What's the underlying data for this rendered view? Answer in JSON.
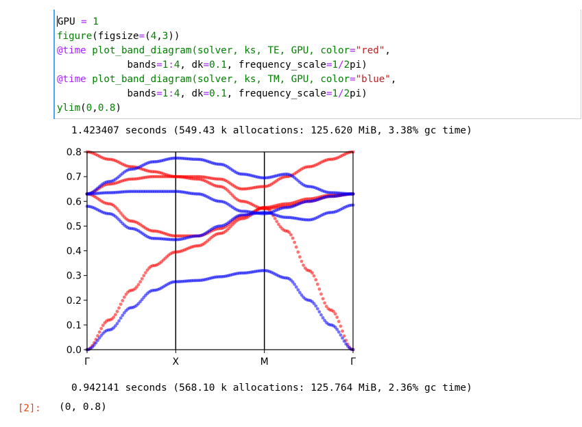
{
  "cell_input": {
    "lines": [
      [
        {
          "t": "GPU",
          "c": "plain"
        },
        {
          "t": " = ",
          "c": "o"
        },
        {
          "t": "1",
          "c": "n"
        }
      ],
      [
        {
          "t": "figure",
          "c": "k"
        },
        {
          "t": "(",
          "c": "plain"
        },
        {
          "t": "figsize",
          "c": "plain"
        },
        {
          "t": "=",
          "c": "o"
        },
        {
          "t": "(",
          "c": "plain"
        },
        {
          "t": "4",
          "c": "n"
        },
        {
          "t": ",",
          "c": "plain"
        },
        {
          "t": "3",
          "c": "n"
        },
        {
          "t": "))",
          "c": "plain"
        }
      ],
      [
        {
          "t": "@time",
          "c": "o"
        },
        {
          "t": " plot_band_diagram(solver, ks, TE, GPU, color",
          "c": "k"
        },
        {
          "t": "=",
          "c": "o"
        },
        {
          "t": "\"red\"",
          "c": "s"
        },
        {
          "t": ",",
          "c": "plain"
        }
      ],
      [
        {
          "t": "            bands",
          "c": "plain"
        },
        {
          "t": "=",
          "c": "o"
        },
        {
          "t": "1",
          "c": "n"
        },
        {
          "t": ":",
          "c": "o"
        },
        {
          "t": "4",
          "c": "n"
        },
        {
          "t": ", dk",
          "c": "plain"
        },
        {
          "t": "=",
          "c": "o"
        },
        {
          "t": "0.1",
          "c": "n"
        },
        {
          "t": ", frequency_scale",
          "c": "plain"
        },
        {
          "t": "=",
          "c": "o"
        },
        {
          "t": "1",
          "c": "n"
        },
        {
          "t": "/",
          "c": "o"
        },
        {
          "t": "2",
          "c": "n"
        },
        {
          "t": "pi)",
          "c": "plain"
        }
      ],
      [
        {
          "t": "@time",
          "c": "o"
        },
        {
          "t": " plot_band_diagram(solver, ks, TM, GPU, color",
          "c": "k"
        },
        {
          "t": "=",
          "c": "o"
        },
        {
          "t": "\"blue\"",
          "c": "s"
        },
        {
          "t": ",",
          "c": "plain"
        }
      ],
      [
        {
          "t": "            bands",
          "c": "plain"
        },
        {
          "t": "=",
          "c": "o"
        },
        {
          "t": "1",
          "c": "n"
        },
        {
          "t": ":",
          "c": "o"
        },
        {
          "t": "4",
          "c": "n"
        },
        {
          "t": ", dk",
          "c": "plain"
        },
        {
          "t": "=",
          "c": "o"
        },
        {
          "t": "0.1",
          "c": "n"
        },
        {
          "t": ", frequency_scale",
          "c": "plain"
        },
        {
          "t": "=",
          "c": "o"
        },
        {
          "t": "1",
          "c": "n"
        },
        {
          "t": "/",
          "c": "o"
        },
        {
          "t": "2",
          "c": "n"
        },
        {
          "t": "pi)",
          "c": "plain"
        }
      ],
      [
        {
          "t": "ylim",
          "c": "k"
        },
        {
          "t": "(",
          "c": "plain"
        },
        {
          "t": "0",
          "c": "n"
        },
        {
          "t": ",",
          "c": "plain"
        },
        {
          "t": "0.8",
          "c": "n"
        },
        {
          "t": ")",
          "c": "plain"
        }
      ]
    ]
  },
  "output": {
    "stdout_1": "1.423407 seconds (549.43 k allocations: 125.620 MiB, 3.38% gc time)",
    "stdout_2": "0.942141 seconds (568.10 k allocations: 125.764 MiB, 2.36% gc time)",
    "prompt": "[2]:",
    "result": "(0, 0.8)"
  },
  "chart_data": {
    "type": "scatter",
    "title": "",
    "xlabel": "",
    "ylabel": "",
    "ylim": [
      0,
      0.8
    ],
    "xlim": [
      0,
      3
    ],
    "xticks": [
      {
        "v": 0,
        "label": "Γ"
      },
      {
        "v": 1,
        "label": "X"
      },
      {
        "v": 2,
        "label": "M"
      },
      {
        "v": 3,
        "label": "Γ"
      }
    ],
    "yticks": [
      "0.0",
      "0.1",
      "0.2",
      "0.3",
      "0.4",
      "0.5",
      "0.6",
      "0.7",
      "0.8"
    ],
    "vlines": [
      1,
      2
    ],
    "colors": {
      "TE": "#ff0000",
      "TM": "#0000ff"
    },
    "series": [
      {
        "color": "#ff0000",
        "points": [
          [
            0,
            0
          ],
          [
            0.25,
            0.12
          ],
          [
            0.5,
            0.24
          ],
          [
            0.75,
            0.34
          ],
          [
            1,
            0.395
          ],
          [
            1.25,
            0.42
          ],
          [
            1.5,
            0.47
          ],
          [
            1.75,
            0.53
          ],
          [
            2,
            0.575
          ],
          [
            2.25,
            0.48
          ],
          [
            2.5,
            0.32
          ],
          [
            2.75,
            0.16
          ],
          [
            3,
            0
          ]
        ]
      },
      {
        "color": "#ff0000",
        "points": [
          [
            0,
            0.63
          ],
          [
            0.25,
            0.59
          ],
          [
            0.5,
            0.52
          ],
          [
            0.75,
            0.48
          ],
          [
            1,
            0.46
          ],
          [
            1.25,
            0.46
          ],
          [
            1.5,
            0.49
          ],
          [
            1.75,
            0.54
          ],
          [
            2,
            0.575
          ],
          [
            2.25,
            0.59
          ],
          [
            2.5,
            0.61
          ],
          [
            2.75,
            0.625
          ],
          [
            3,
            0.63
          ]
        ]
      },
      {
        "color": "#ff0000",
        "points": [
          [
            0,
            0.63
          ],
          [
            0.25,
            0.67
          ],
          [
            0.5,
            0.69
          ],
          [
            0.75,
            0.7
          ],
          [
            1,
            0.7
          ],
          [
            1.25,
            0.69
          ],
          [
            1.5,
            0.66
          ],
          [
            1.75,
            0.6
          ],
          [
            2,
            0.57
          ],
          [
            2.25,
            0.58
          ],
          [
            2.5,
            0.6
          ],
          [
            2.75,
            0.62
          ],
          [
            3,
            0.63
          ]
        ]
      },
      {
        "color": "#ff0000",
        "points": [
          [
            0,
            0.8
          ],
          [
            0.25,
            0.77
          ],
          [
            0.5,
            0.74
          ],
          [
            0.75,
            0.72
          ],
          [
            1,
            0.7
          ],
          [
            1.25,
            0.7
          ],
          [
            1.5,
            0.69
          ],
          [
            1.75,
            0.65
          ],
          [
            2,
            0.66
          ],
          [
            2.25,
            0.7
          ],
          [
            2.5,
            0.74
          ],
          [
            2.75,
            0.77
          ],
          [
            3,
            0.8
          ]
        ]
      },
      {
        "color": "#0000ff",
        "points": [
          [
            0,
            0
          ],
          [
            0.25,
            0.08
          ],
          [
            0.5,
            0.17
          ],
          [
            0.75,
            0.24
          ],
          [
            1,
            0.275
          ],
          [
            1.25,
            0.28
          ],
          [
            1.5,
            0.295
          ],
          [
            1.75,
            0.31
          ],
          [
            2,
            0.32
          ],
          [
            2.25,
            0.29
          ],
          [
            2.5,
            0.2
          ],
          [
            2.75,
            0.1
          ],
          [
            3,
            0
          ]
        ]
      },
      {
        "color": "#0000ff",
        "points": [
          [
            0,
            0.58
          ],
          [
            0.25,
            0.55
          ],
          [
            0.5,
            0.49
          ],
          [
            0.75,
            0.45
          ],
          [
            1,
            0.445
          ],
          [
            1.25,
            0.46
          ],
          [
            1.5,
            0.5
          ],
          [
            1.75,
            0.545
          ],
          [
            2,
            0.555
          ],
          [
            2.25,
            0.535
          ],
          [
            2.5,
            0.525
          ],
          [
            2.75,
            0.555
          ],
          [
            3,
            0.585
          ]
        ]
      },
      {
        "color": "#0000ff",
        "points": [
          [
            0,
            0.63
          ],
          [
            0.25,
            0.635
          ],
          [
            0.5,
            0.64
          ],
          [
            0.75,
            0.64
          ],
          [
            1,
            0.64
          ],
          [
            1.25,
            0.63
          ],
          [
            1.5,
            0.6
          ],
          [
            1.75,
            0.56
          ],
          [
            2,
            0.55
          ],
          [
            2.25,
            0.575
          ],
          [
            2.5,
            0.6
          ],
          [
            2.75,
            0.62
          ],
          [
            3,
            0.63
          ]
        ]
      },
      {
        "color": "#0000ff",
        "points": [
          [
            0,
            0.63
          ],
          [
            0.25,
            0.68
          ],
          [
            0.5,
            0.73
          ],
          [
            0.75,
            0.76
          ],
          [
            1,
            0.775
          ],
          [
            1.25,
            0.77
          ],
          [
            1.5,
            0.75
          ],
          [
            1.75,
            0.71
          ],
          [
            2,
            0.695
          ],
          [
            2.25,
            0.71
          ],
          [
            2.5,
            0.66
          ],
          [
            2.75,
            0.635
          ],
          [
            3,
            0.63
          ]
        ]
      }
    ]
  }
}
